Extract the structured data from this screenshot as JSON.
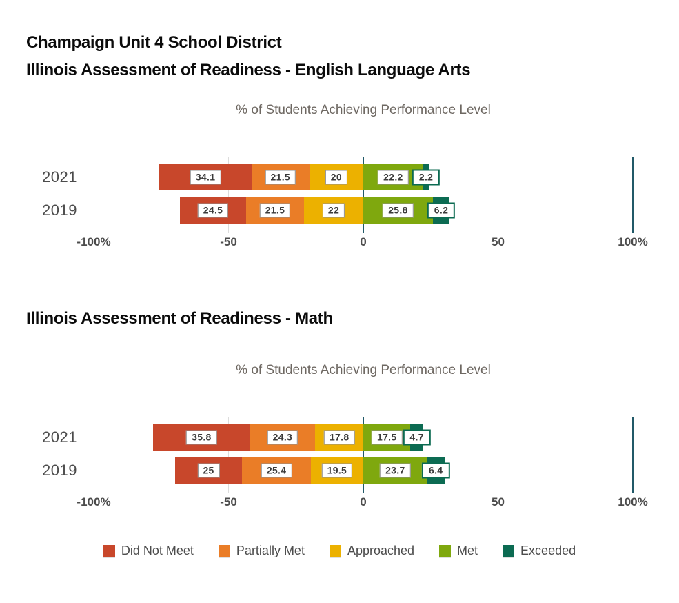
{
  "header": {
    "line1": "Champaign Unit 4 School District",
    "line2": "Illinois Assessment of Readiness - English Language Arts",
    "math_title": "Illinois Assessment of Readiness - Math"
  },
  "colors": {
    "did_not_meet": "#c8472b",
    "partially_met": "#ea7d27",
    "approached": "#ecb100",
    "met": "#7fa80e",
    "exceeded": "#0c6b52",
    "axis_teal": "#215968",
    "axis_gray": "#757575",
    "axis_light": "#dcdcdc"
  },
  "legend": {
    "items": [
      {
        "label": "Did Not Meet",
        "color": "#c8472b"
      },
      {
        "label": "Partially Met",
        "color": "#ea7d27"
      },
      {
        "label": "Approached",
        "color": "#ecb100"
      },
      {
        "label": "Met",
        "color": "#7fa80e"
      },
      {
        "label": "Exceeded",
        "color": "#0c6b52"
      }
    ]
  },
  "chart_data": [
    {
      "type": "bar",
      "subtype": "diverging-stacked-horizontal",
      "title": "Illinois Assessment of Readiness - English Language Arts",
      "subtitle": "% of Students Achieving Performance Level",
      "categories": [
        "2021",
        "2019"
      ],
      "series": [
        {
          "name": "Did Not Meet",
          "side": "negative",
          "color": "#c8472b",
          "values": [
            34.1,
            24.5
          ]
        },
        {
          "name": "Partially Met",
          "side": "negative",
          "color": "#ea7d27",
          "values": [
            21.5,
            21.5
          ]
        },
        {
          "name": "Approached",
          "side": "negative",
          "color": "#ecb100",
          "values": [
            20,
            22
          ]
        },
        {
          "name": "Met",
          "side": "positive",
          "color": "#7fa80e",
          "values": [
            22.2,
            25.8
          ]
        },
        {
          "name": "Exceeded",
          "side": "positive",
          "color": "#0c6b52",
          "values": [
            2.2,
            6.2
          ]
        }
      ],
      "xlim": [
        -100,
        100
      ],
      "x_ticks": [
        {
          "value": -100,
          "label": "-100%"
        },
        {
          "value": -50,
          "label": "-50"
        },
        {
          "value": 0,
          "label": "0"
        },
        {
          "value": 50,
          "label": "50"
        },
        {
          "value": 100,
          "label": "100%"
        }
      ],
      "legend_position": "bottom-shared",
      "grid": "vertical-reference-lines"
    },
    {
      "type": "bar",
      "subtype": "diverging-stacked-horizontal",
      "title": "Illinois Assessment of Readiness - Math",
      "subtitle": "% of Students Achieving Performance Level",
      "categories": [
        "2021",
        "2019"
      ],
      "series": [
        {
          "name": "Did Not Meet",
          "side": "negative",
          "color": "#c8472b",
          "values": [
            35.8,
            25
          ]
        },
        {
          "name": "Partially Met",
          "side": "negative",
          "color": "#ea7d27",
          "values": [
            24.3,
            25.4
          ]
        },
        {
          "name": "Approached",
          "side": "negative",
          "color": "#ecb100",
          "values": [
            17.8,
            19.5
          ]
        },
        {
          "name": "Met",
          "side": "positive",
          "color": "#7fa80e",
          "values": [
            17.5,
            23.7
          ]
        },
        {
          "name": "Exceeded",
          "side": "positive",
          "color": "#0c6b52",
          "values": [
            4.7,
            6.4
          ]
        }
      ],
      "xlim": [
        -100,
        100
      ],
      "x_ticks": [
        {
          "value": -100,
          "label": "-100%"
        },
        {
          "value": -50,
          "label": "-50"
        },
        {
          "value": 0,
          "label": "0"
        },
        {
          "value": 50,
          "label": "50"
        },
        {
          "value": 100,
          "label": "100%"
        }
      ],
      "legend_position": "bottom-shared",
      "grid": "vertical-reference-lines"
    }
  ]
}
